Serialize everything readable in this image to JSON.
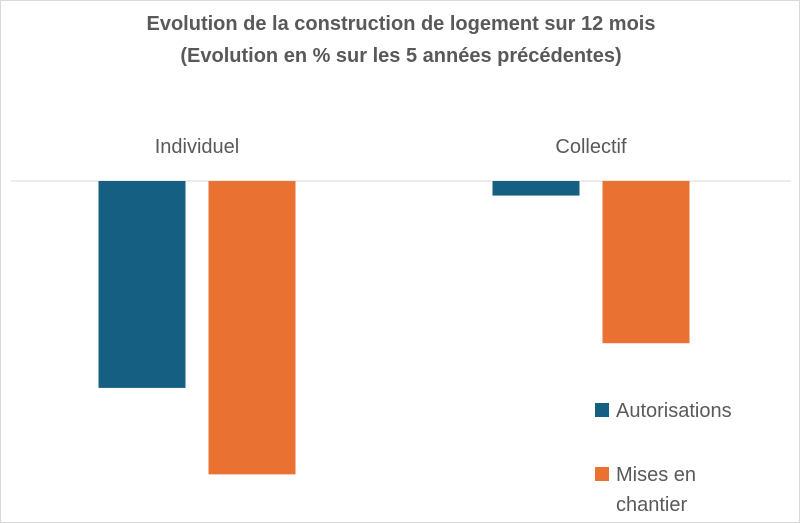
{
  "chart_data": {
    "type": "bar",
    "title": "Evolution de la construction de logement sur 12 mois",
    "subtitle": "(Evolution en % sur les 5 années précédentes)",
    "categories": [
      "Individuel",
      "Collectif"
    ],
    "category_axis_position": "top",
    "series": [
      {
        "name": "Autorisations",
        "color": "#156082",
        "values": [
          -21.3,
          -1.5
        ]
      },
      {
        "name": "Mises en chantier",
        "color": "#E97132",
        "values": [
          -30.2,
          -16.7
        ]
      }
    ],
    "ylim": [
      -35,
      0
    ],
    "value_axis_labels_shown": false,
    "grid": false,
    "legend_position": "bottom-right",
    "xlabel": "",
    "ylabel": ""
  }
}
